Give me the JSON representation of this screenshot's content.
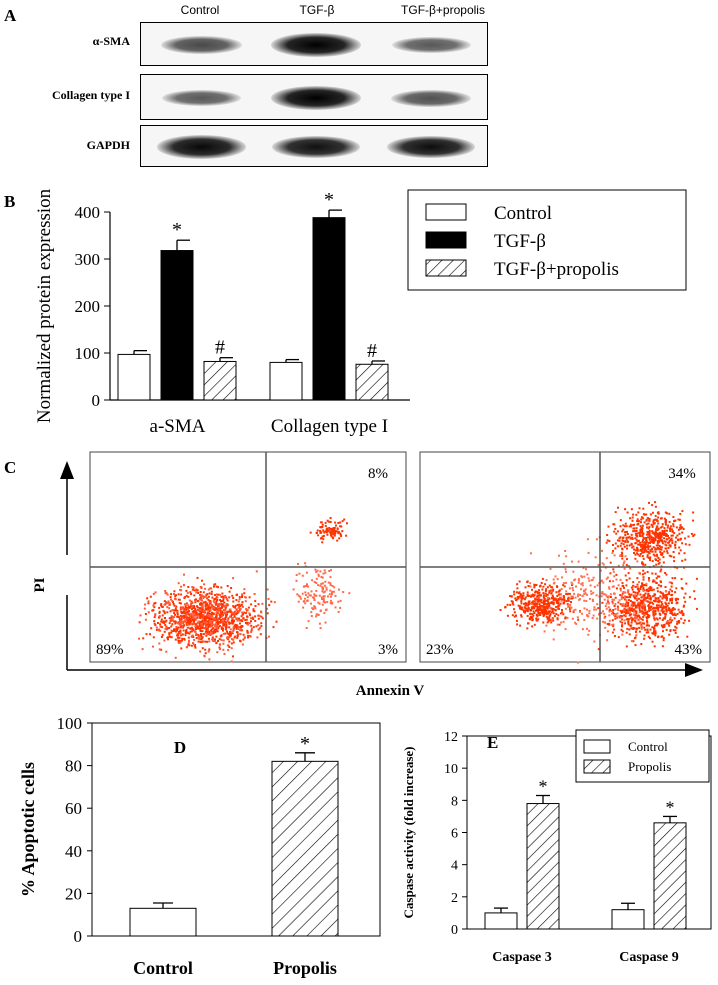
{
  "panel_a": {
    "letter": "A",
    "lanes": [
      "Control",
      "TGF-β",
      "TGF-β+propolis"
    ],
    "blots": [
      {
        "label": "α-SMA",
        "intensity": [
          0.55,
          1.0,
          0.45
        ]
      },
      {
        "label": "Collagen type I",
        "intensity": [
          0.45,
          1.0,
          0.5
        ]
      },
      {
        "label": "GAPDH",
        "intensity": [
          0.95,
          0.9,
          0.92
        ]
      }
    ]
  },
  "panel_b": {
    "letter": "B"
  },
  "panel_c": {
    "letter": "C",
    "ylabel": "PI",
    "xlabel": "Annexin V",
    "plots": [
      {
        "quadrants": {
          "upper_right": "8%",
          "lower_left": "89%",
          "lower_right": "3%"
        }
      },
      {
        "quadrants": {
          "upper_right": "34%",
          "lower_left": "23%",
          "lower_right": "43%"
        }
      }
    ]
  },
  "panel_d": {
    "letter": "D"
  },
  "panel_e": {
    "letter": "E"
  },
  "chart_data": [
    {
      "id": "B",
      "type": "bar",
      "categories": [
        "a-SMA",
        "Collagen type I"
      ],
      "ylabel": "Normalized protein expression",
      "ylim": [
        0,
        400
      ],
      "yticks": [
        0,
        100,
        200,
        300,
        400
      ],
      "legend_position": "top-right",
      "series": [
        {
          "name": "Control",
          "values": [
            97,
            80
          ],
          "errors": [
            8,
            6
          ],
          "marks": [
            "",
            ""
          ],
          "fill": "white"
        },
        {
          "name": "TGF-β",
          "values": [
            318,
            388
          ],
          "errors": [
            22,
            16
          ],
          "marks": [
            "*",
            "*"
          ],
          "fill": "black"
        },
        {
          "name": "TGF-β+propolis",
          "values": [
            82,
            76
          ],
          "errors": [
            8,
            7
          ],
          "marks": [
            "#",
            "#"
          ],
          "fill": "hatch"
        }
      ]
    },
    {
      "id": "D",
      "type": "bar",
      "categories": [
        "Control",
        "Propolis"
      ],
      "ylabel": "% Apoptotic cells",
      "ylim": [
        0,
        100
      ],
      "yticks": [
        0,
        20,
        40,
        60,
        80,
        100
      ],
      "values": [
        13,
        82
      ],
      "errors": [
        2.5,
        4
      ],
      "marks": [
        "",
        "*"
      ],
      "fills": [
        "white",
        "hatch"
      ]
    },
    {
      "id": "E",
      "type": "bar",
      "categories": [
        "Caspase 3",
        "Caspase 9"
      ],
      "ylabel": "Caspase activity (fold increase)",
      "ylim": [
        0,
        12
      ],
      "yticks": [
        0,
        2,
        4,
        6,
        8,
        10,
        12
      ],
      "legend_position": "top-right",
      "series": [
        {
          "name": "Control",
          "values": [
            1.0,
            1.2
          ],
          "errors": [
            0.3,
            0.4
          ],
          "marks": [
            "",
            ""
          ],
          "fill": "white"
        },
        {
          "name": "Propolis",
          "values": [
            7.8,
            6.6
          ],
          "errors": [
            0.5,
            0.4
          ],
          "marks": [
            "*",
            "*"
          ],
          "fill": "hatch"
        }
      ]
    }
  ]
}
